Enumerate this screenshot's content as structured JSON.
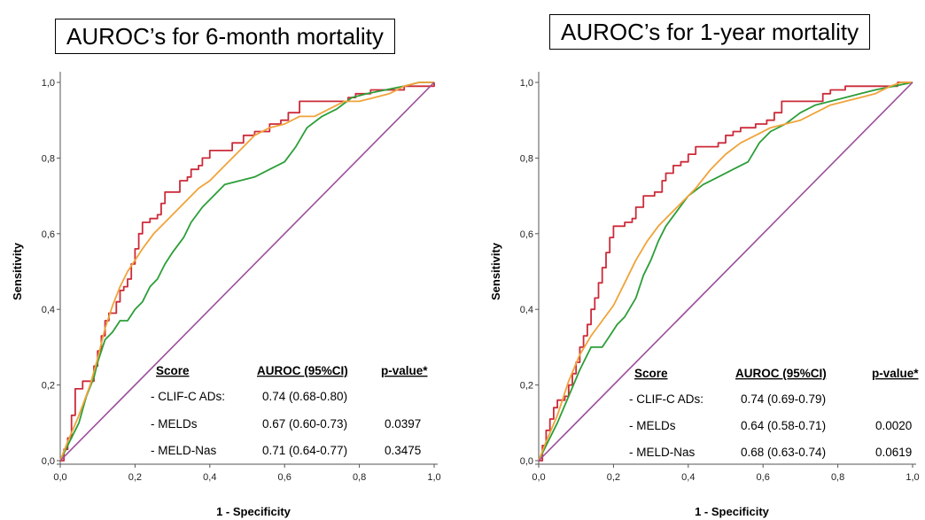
{
  "chart_data": [
    {
      "type": "line",
      "title": "AUROC’s for 6-month mortality",
      "xlabel": "1 - Specificity",
      "ylabel": "Sensitivity",
      "xlim": [
        0,
        1
      ],
      "ylim": [
        0,
        1
      ],
      "x_ticks": [
        "0,0",
        "0,2",
        "0,4",
        "0,6",
        "0,8",
        "1,0"
      ],
      "y_ticks": [
        "0,0",
        "0,2",
        "0,4",
        "0,6",
        "0,8",
        "1,0"
      ],
      "table": {
        "headers": [
          "Score",
          "AUROC (95%CI)",
          "p-value*"
        ],
        "rows": [
          [
            "- CLIF-C ADs:",
            "0.74 (0.68-0.80)",
            ""
          ],
          [
            "- MELDs",
            "0.67 (0.60-0.73)",
            "0.0397"
          ],
          [
            "- MELD-Nas",
            "0.71 (0.64-0.77)",
            "0.3475"
          ]
        ]
      },
      "series": [
        {
          "color": "#cc2b39",
          "style": "step",
          "points": [
            [
              0,
              0
            ],
            [
              0.01,
              0.03
            ],
            [
              0.02,
              0.06
            ],
            [
              0.03,
              0.12
            ],
            [
              0.04,
              0.19
            ],
            [
              0.05,
              0.19
            ],
            [
              0.06,
              0.21
            ],
            [
              0.08,
              0.21
            ],
            [
              0.09,
              0.25
            ],
            [
              0.1,
              0.29
            ],
            [
              0.11,
              0.33
            ],
            [
              0.12,
              0.37
            ],
            [
              0.13,
              0.39
            ],
            [
              0.14,
              0.39
            ],
            [
              0.15,
              0.42
            ],
            [
              0.16,
              0.45
            ],
            [
              0.17,
              0.46
            ],
            [
              0.18,
              0.48
            ],
            [
              0.19,
              0.52
            ],
            [
              0.2,
              0.56
            ],
            [
              0.21,
              0.6
            ],
            [
              0.22,
              0.63
            ],
            [
              0.24,
              0.64
            ],
            [
              0.26,
              0.65
            ],
            [
              0.27,
              0.68
            ],
            [
              0.28,
              0.71
            ],
            [
              0.31,
              0.71
            ],
            [
              0.32,
              0.74
            ],
            [
              0.34,
              0.75
            ],
            [
              0.35,
              0.77
            ],
            [
              0.37,
              0.78
            ],
            [
              0.38,
              0.8
            ],
            [
              0.4,
              0.82
            ],
            [
              0.45,
              0.82
            ],
            [
              0.46,
              0.84
            ],
            [
              0.48,
              0.84
            ],
            [
              0.49,
              0.86
            ],
            [
              0.51,
              0.86
            ],
            [
              0.52,
              0.87
            ],
            [
              0.55,
              0.87
            ],
            [
              0.56,
              0.89
            ],
            [
              0.59,
              0.9
            ],
            [
              0.61,
              0.92
            ],
            [
              0.63,
              0.92
            ],
            [
              0.64,
              0.95
            ],
            [
              0.75,
              0.95
            ],
            [
              0.77,
              0.96
            ],
            [
              0.79,
              0.97
            ],
            [
              0.81,
              0.97
            ],
            [
              0.83,
              0.98
            ],
            [
              0.9,
              0.98
            ],
            [
              0.92,
              0.99
            ],
            [
              1.0,
              1.0
            ]
          ]
        },
        {
          "color": "#2c9e38",
          "style": "line",
          "points": [
            [
              0,
              0
            ],
            [
              0.02,
              0.04
            ],
            [
              0.05,
              0.1
            ],
            [
              0.07,
              0.17
            ],
            [
              0.09,
              0.22
            ],
            [
              0.1,
              0.26
            ],
            [
              0.12,
              0.32
            ],
            [
              0.14,
              0.34
            ],
            [
              0.16,
              0.37
            ],
            [
              0.18,
              0.37
            ],
            [
              0.2,
              0.4
            ],
            [
              0.22,
              0.42
            ],
            [
              0.24,
              0.46
            ],
            [
              0.26,
              0.48
            ],
            [
              0.28,
              0.52
            ],
            [
              0.3,
              0.55
            ],
            [
              0.33,
              0.59
            ],
            [
              0.35,
              0.63
            ],
            [
              0.38,
              0.67
            ],
            [
              0.41,
              0.7
            ],
            [
              0.44,
              0.73
            ],
            [
              0.48,
              0.74
            ],
            [
              0.52,
              0.75
            ],
            [
              0.56,
              0.77
            ],
            [
              0.6,
              0.79
            ],
            [
              0.63,
              0.83
            ],
            [
              0.66,
              0.88
            ],
            [
              0.7,
              0.91
            ],
            [
              0.74,
              0.93
            ],
            [
              0.78,
              0.96
            ],
            [
              0.82,
              0.97
            ],
            [
              0.87,
              0.98
            ],
            [
              0.92,
              0.99
            ],
            [
              0.96,
              1.0
            ],
            [
              1.0,
              1.0
            ]
          ]
        },
        {
          "color": "#f0a33a",
          "style": "line",
          "points": [
            [
              0,
              0
            ],
            [
              0.02,
              0.05
            ],
            [
              0.05,
              0.12
            ],
            [
              0.08,
              0.2
            ],
            [
              0.1,
              0.27
            ],
            [
              0.12,
              0.35
            ],
            [
              0.14,
              0.41
            ],
            [
              0.16,
              0.46
            ],
            [
              0.18,
              0.5
            ],
            [
              0.2,
              0.53
            ],
            [
              0.22,
              0.56
            ],
            [
              0.25,
              0.6
            ],
            [
              0.28,
              0.63
            ],
            [
              0.31,
              0.66
            ],
            [
              0.34,
              0.69
            ],
            [
              0.37,
              0.72
            ],
            [
              0.4,
              0.74
            ],
            [
              0.44,
              0.78
            ],
            [
              0.48,
              0.82
            ],
            [
              0.52,
              0.86
            ],
            [
              0.56,
              0.88
            ],
            [
              0.6,
              0.89
            ],
            [
              0.64,
              0.91
            ],
            [
              0.68,
              0.91
            ],
            [
              0.72,
              0.93
            ],
            [
              0.76,
              0.95
            ],
            [
              0.8,
              0.95
            ],
            [
              0.84,
              0.96
            ],
            [
              0.88,
              0.97
            ],
            [
              0.92,
              0.99
            ],
            [
              0.96,
              1.0
            ],
            [
              1.0,
              1.0
            ]
          ]
        },
        {
          "color": "#9b4f9b",
          "style": "line",
          "points": [
            [
              0,
              0
            ],
            [
              1,
              1
            ]
          ]
        }
      ]
    },
    {
      "type": "line",
      "title": "AUROC’s for 1-year mortality",
      "xlabel": "1 - Specificity",
      "ylabel": "Sensitivity",
      "xlim": [
        0,
        1
      ],
      "ylim": [
        0,
        1
      ],
      "x_ticks": [
        "0,0",
        "0,2",
        "0,4",
        "0,6",
        "0,8",
        "1,0"
      ],
      "y_ticks": [
        "0,0",
        "0,2",
        "0,4",
        "0,6",
        "0,8",
        "1,0"
      ],
      "table": {
        "headers": [
          "Score",
          "AUROC (95%CI)",
          "p-value*"
        ],
        "rows": [
          [
            "- CLIF-C ADs:",
            "0.74 (0.69-0.79)",
            ""
          ],
          [
            "- MELDs",
            "0.64 (0.58-0.71)",
            "0.0020"
          ],
          [
            "- MELD-Nas",
            "0.68 (0.63-0.74)",
            "0.0619"
          ]
        ]
      },
      "series": [
        {
          "color": "#cc2b39",
          "style": "step",
          "points": [
            [
              0,
              0
            ],
            [
              0.01,
              0.04
            ],
            [
              0.02,
              0.08
            ],
            [
              0.03,
              0.11
            ],
            [
              0.04,
              0.14
            ],
            [
              0.05,
              0.16
            ],
            [
              0.07,
              0.17
            ],
            [
              0.08,
              0.2
            ],
            [
              0.09,
              0.23
            ],
            [
              0.1,
              0.26
            ],
            [
              0.11,
              0.3
            ],
            [
              0.12,
              0.33
            ],
            [
              0.13,
              0.36
            ],
            [
              0.14,
              0.4
            ],
            [
              0.15,
              0.43
            ],
            [
              0.16,
              0.47
            ],
            [
              0.17,
              0.51
            ],
            [
              0.18,
              0.55
            ],
            [
              0.19,
              0.59
            ],
            [
              0.2,
              0.62
            ],
            [
              0.23,
              0.63
            ],
            [
              0.25,
              0.64
            ],
            [
              0.26,
              0.67
            ],
            [
              0.28,
              0.7
            ],
            [
              0.31,
              0.71
            ],
            [
              0.33,
              0.74
            ],
            [
              0.34,
              0.76
            ],
            [
              0.36,
              0.78
            ],
            [
              0.38,
              0.79
            ],
            [
              0.4,
              0.81
            ],
            [
              0.42,
              0.83
            ],
            [
              0.46,
              0.83
            ],
            [
              0.48,
              0.84
            ],
            [
              0.5,
              0.86
            ],
            [
              0.52,
              0.87
            ],
            [
              0.54,
              0.88
            ],
            [
              0.57,
              0.88
            ],
            [
              0.58,
              0.89
            ],
            [
              0.61,
              0.9
            ],
            [
              0.63,
              0.92
            ],
            [
              0.65,
              0.95
            ],
            [
              0.74,
              0.95
            ],
            [
              0.76,
              0.97
            ],
            [
              0.78,
              0.98
            ],
            [
              0.8,
              0.98
            ],
            [
              0.82,
              0.99
            ],
            [
              0.93,
              0.99
            ],
            [
              0.96,
              1.0
            ],
            [
              1.0,
              1.0
            ]
          ]
        },
        {
          "color": "#2c9e38",
          "style": "line",
          "points": [
            [
              0,
              0
            ],
            [
              0.02,
              0.04
            ],
            [
              0.05,
              0.1
            ],
            [
              0.08,
              0.17
            ],
            [
              0.11,
              0.24
            ],
            [
              0.14,
              0.3
            ],
            [
              0.17,
              0.3
            ],
            [
              0.19,
              0.33
            ],
            [
              0.21,
              0.36
            ],
            [
              0.23,
              0.38
            ],
            [
              0.26,
              0.43
            ],
            [
              0.28,
              0.49
            ],
            [
              0.3,
              0.53
            ],
            [
              0.32,
              0.58
            ],
            [
              0.34,
              0.62
            ],
            [
              0.37,
              0.66
            ],
            [
              0.4,
              0.7
            ],
            [
              0.44,
              0.73
            ],
            [
              0.48,
              0.75
            ],
            [
              0.52,
              0.77
            ],
            [
              0.56,
              0.79
            ],
            [
              0.59,
              0.84
            ],
            [
              0.62,
              0.87
            ],
            [
              0.66,
              0.89
            ],
            [
              0.7,
              0.92
            ],
            [
              0.74,
              0.94
            ],
            [
              0.78,
              0.95
            ],
            [
              0.82,
              0.96
            ],
            [
              0.86,
              0.97
            ],
            [
              0.9,
              0.98
            ],
            [
              0.95,
              0.99
            ],
            [
              1.0,
              1.0
            ]
          ]
        },
        {
          "color": "#f0a33a",
          "style": "line",
          "points": [
            [
              0,
              0
            ],
            [
              0.02,
              0.05
            ],
            [
              0.05,
              0.12
            ],
            [
              0.08,
              0.21
            ],
            [
              0.11,
              0.28
            ],
            [
              0.14,
              0.33
            ],
            [
              0.17,
              0.37
            ],
            [
              0.2,
              0.41
            ],
            [
              0.23,
              0.47
            ],
            [
              0.26,
              0.53
            ],
            [
              0.29,
              0.58
            ],
            [
              0.32,
              0.62
            ],
            [
              0.35,
              0.65
            ],
            [
              0.38,
              0.68
            ],
            [
              0.42,
              0.72
            ],
            [
              0.46,
              0.77
            ],
            [
              0.5,
              0.81
            ],
            [
              0.54,
              0.84
            ],
            [
              0.58,
              0.86
            ],
            [
              0.62,
              0.88
            ],
            [
              0.66,
              0.89
            ],
            [
              0.7,
              0.9
            ],
            [
              0.74,
              0.92
            ],
            [
              0.78,
              0.94
            ],
            [
              0.82,
              0.95
            ],
            [
              0.86,
              0.96
            ],
            [
              0.9,
              0.97
            ],
            [
              0.94,
              0.99
            ],
            [
              0.97,
              1.0
            ],
            [
              1.0,
              1.0
            ]
          ]
        },
        {
          "color": "#9b4f9b",
          "style": "line",
          "points": [
            [
              0,
              0
            ],
            [
              1,
              1
            ]
          ]
        }
      ]
    }
  ]
}
